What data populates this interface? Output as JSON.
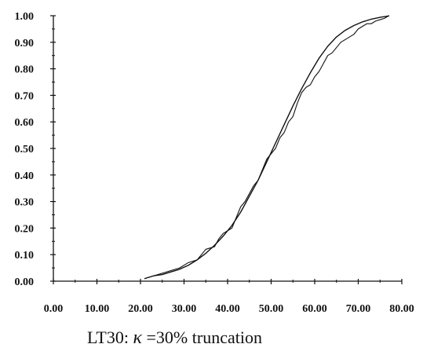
{
  "chart_data": {
    "type": "line",
    "title": "",
    "xlabel": "",
    "ylabel": "",
    "xlim": [
      0,
      80
    ],
    "ylim": [
      0,
      1
    ],
    "x_ticks": [
      "0.00",
      "10.00",
      "20.00",
      "30.00",
      "40.00",
      "50.00",
      "60.00",
      "70.00",
      "80.00"
    ],
    "y_ticks": [
      "0.00",
      "0.10",
      "0.20",
      "0.30",
      "0.40",
      "0.50",
      "0.60",
      "0.70",
      "0.80",
      "0.90",
      "1.00"
    ],
    "grid": false,
    "legend": "none",
    "series": [
      {
        "style": "smooth",
        "x": [
          21,
          23,
          25,
          27,
          29,
          31,
          33,
          35,
          37,
          39,
          41,
          43,
          45,
          47,
          49,
          51,
          53,
          55,
          57,
          59,
          61,
          63,
          65,
          67,
          69,
          71,
          73,
          75,
          77
        ],
        "y": [
          0.01,
          0.02,
          0.025,
          0.035,
          0.045,
          0.06,
          0.08,
          0.105,
          0.135,
          0.17,
          0.21,
          0.26,
          0.32,
          0.38,
          0.45,
          0.52,
          0.59,
          0.66,
          0.725,
          0.785,
          0.84,
          0.885,
          0.92,
          0.945,
          0.963,
          0.977,
          0.987,
          0.994,
          0.999
        ]
      },
      {
        "style": "empirical",
        "x": [
          21,
          23,
          25,
          27,
          29,
          31,
          33,
          34,
          35,
          37,
          38,
          39,
          41,
          42,
          43,
          44,
          45,
          46,
          47,
          48,
          49,
          50,
          51,
          52,
          53,
          54,
          55,
          56,
          57,
          58,
          59,
          60,
          61,
          62,
          63,
          64,
          65,
          66,
          67,
          68,
          69,
          70,
          71,
          72,
          73,
          74,
          75,
          76,
          77
        ],
        "y": [
          0.01,
          0.02,
          0.03,
          0.04,
          0.05,
          0.07,
          0.08,
          0.1,
          0.12,
          0.13,
          0.16,
          0.18,
          0.2,
          0.24,
          0.28,
          0.3,
          0.33,
          0.36,
          0.38,
          0.42,
          0.46,
          0.48,
          0.5,
          0.54,
          0.56,
          0.6,
          0.62,
          0.67,
          0.71,
          0.73,
          0.74,
          0.77,
          0.79,
          0.82,
          0.85,
          0.86,
          0.88,
          0.9,
          0.91,
          0.92,
          0.93,
          0.95,
          0.96,
          0.97,
          0.97,
          0.98,
          0.985,
          0.99,
          1.0
        ]
      }
    ]
  },
  "caption": {
    "prefix": "LT30:",
    "kappa_symbol": "κ",
    "suffix": "=30% truncation"
  }
}
